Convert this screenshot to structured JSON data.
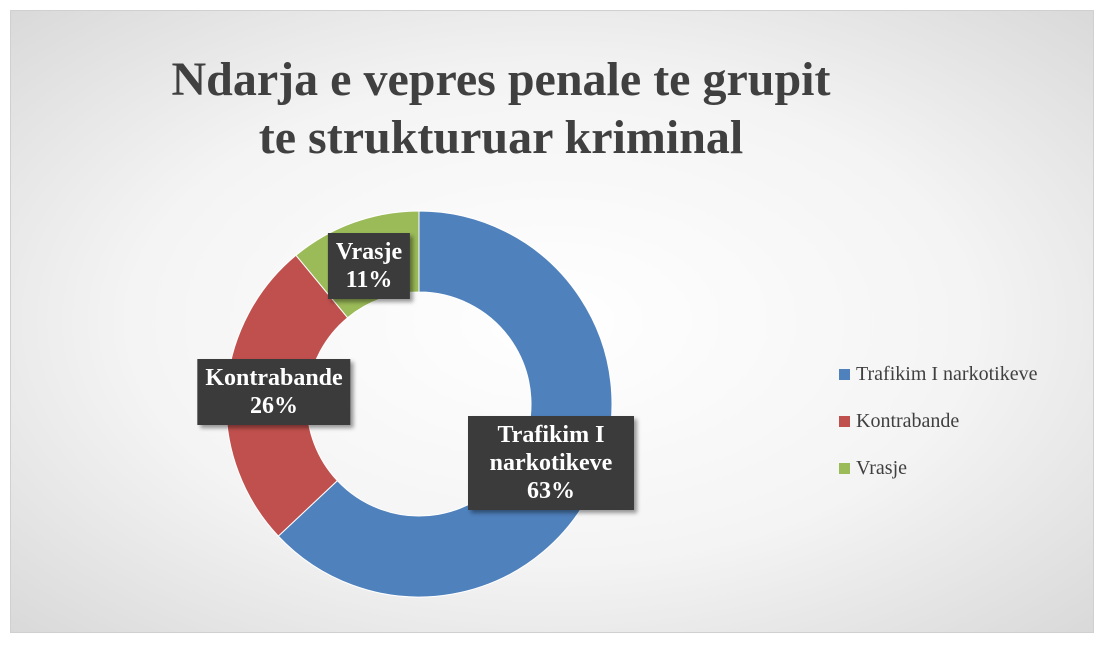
{
  "chart_data": {
    "type": "pie",
    "donut": true,
    "title": "Ndarja e vepres penale te grupit te strukturuar kriminal",
    "categories": [
      "Trafikim I narkotikeve",
      "Kontrabande",
      "Vrasje"
    ],
    "values": [
      63,
      26,
      11
    ],
    "value_labels": [
      "63%",
      "26%",
      "11%"
    ],
    "colors": [
      "#4f81bd",
      "#c0504d",
      "#9bbb59"
    ],
    "legend": "right"
  }
}
